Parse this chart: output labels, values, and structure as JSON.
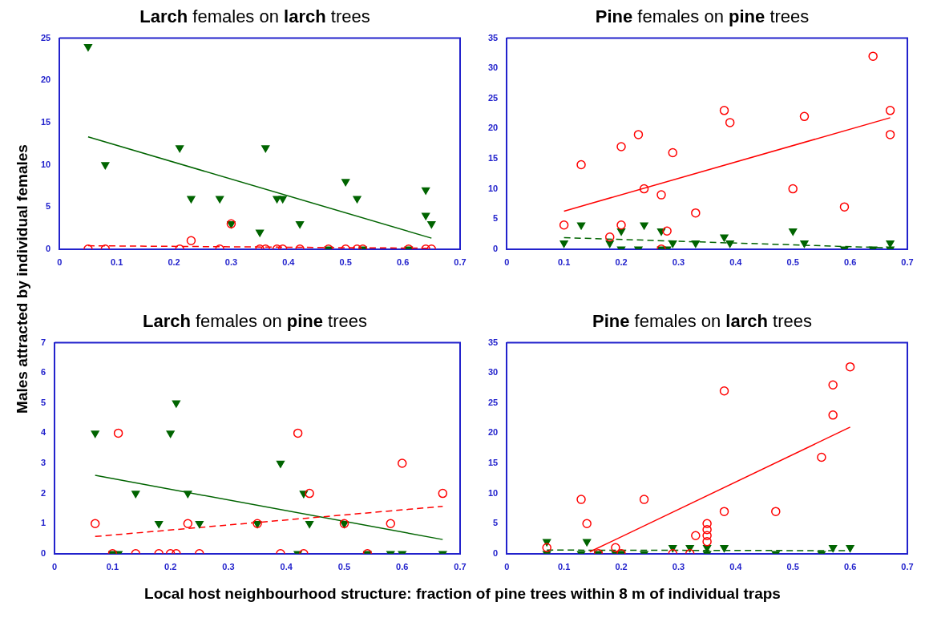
{
  "chart_data": [
    {
      "type": "scatter",
      "title": "Larch females on larch trees",
      "ylabel": "Males attracted by individual females",
      "xlim": [
        0,
        0.7
      ],
      "xticks": [
        0,
        0.1,
        0.2,
        0.3,
        0.4,
        0.5,
        0.6,
        0.7
      ],
      "ylim": [
        0,
        25
      ],
      "yticks": [
        0,
        5,
        10,
        15,
        20,
        25
      ],
      "grid": false,
      "legend": false,
      "series": [
        {
          "type": "scatter",
          "marker": "circle",
          "color": "#ff0000",
          "x": [
            0.05,
            0.08,
            0.21,
            0.23,
            0.28,
            0.3,
            0.35,
            0.36,
            0.38,
            0.39,
            0.42,
            0.47,
            0.5,
            0.52,
            0.53,
            0.61,
            0.64,
            0.65
          ],
          "values": [
            0,
            0,
            0,
            1,
            0,
            3,
            0,
            0,
            0,
            0,
            0,
            0,
            0,
            0,
            0,
            0,
            0,
            0
          ]
        },
        {
          "type": "scatter",
          "marker": "triangle",
          "color": "#006400",
          "x": [
            0.05,
            0.08,
            0.21,
            0.23,
            0.28,
            0.3,
            0.35,
            0.36,
            0.38,
            0.39,
            0.42,
            0.47,
            0.5,
            0.52,
            0.53,
            0.61,
            0.64,
            0.64,
            0.65
          ],
          "values": [
            24,
            10,
            12,
            6,
            6,
            3,
            2,
            12,
            6,
            6,
            3,
            0,
            8,
            6,
            0,
            0,
            7,
            4,
            3
          ]
        },
        {
          "type": "line",
          "line_style": "dashed",
          "color": "#ff0000",
          "x": [
            0.05,
            0.65
          ],
          "values": [
            0.4,
            0.1
          ]
        },
        {
          "type": "line",
          "line_style": "solid",
          "color": "#006400",
          "x": [
            0.05,
            0.65
          ],
          "values": [
            13.3,
            1.3
          ]
        }
      ]
    },
    {
      "type": "scatter",
      "title": "Pine females on pine trees",
      "xlim": [
        0,
        0.7
      ],
      "xticks": [
        0,
        0.1,
        0.2,
        0.3,
        0.4,
        0.5,
        0.6,
        0.7
      ],
      "ylim": [
        0,
        35
      ],
      "yticks": [
        0,
        5,
        10,
        15,
        20,
        25,
        30,
        35
      ],
      "grid": false,
      "legend": false,
      "series": [
        {
          "type": "scatter",
          "marker": "circle",
          "color": "#ff0000",
          "x": [
            0.1,
            0.13,
            0.18,
            0.2,
            0.2,
            0.23,
            0.24,
            0.27,
            0.27,
            0.28,
            0.29,
            0.33,
            0.38,
            0.39,
            0.5,
            0.52,
            0.59,
            0.64,
            0.67,
            0.67
          ],
          "values": [
            4,
            14,
            2,
            17,
            4,
            19,
            10,
            9,
            0,
            3,
            16,
            6,
            23,
            21,
            10,
            22,
            7,
            32,
            23,
            19
          ]
        },
        {
          "type": "scatter",
          "marker": "triangle",
          "color": "#006400",
          "x": [
            0.1,
            0.13,
            0.18,
            0.2,
            0.2,
            0.23,
            0.24,
            0.27,
            0.27,
            0.28,
            0.29,
            0.33,
            0.38,
            0.39,
            0.5,
            0.52,
            0.59,
            0.64,
            0.67,
            0.67
          ],
          "values": [
            1,
            4,
            1,
            3,
            0,
            0,
            4,
            3,
            0,
            0,
            1,
            1,
            2,
            1,
            3,
            1,
            0,
            0,
            1,
            0
          ]
        },
        {
          "type": "line",
          "line_style": "solid",
          "color": "#ff0000",
          "x": [
            0.1,
            0.67
          ],
          "values": [
            6.3,
            21.8
          ]
        },
        {
          "type": "line",
          "line_style": "dashed",
          "color": "#006400",
          "x": [
            0.1,
            0.67
          ],
          "values": [
            1.9,
            0.2
          ]
        }
      ]
    },
    {
      "type": "scatter",
      "title": "Larch females on pine trees",
      "xlabel": "Local host neighbourhood structure: fraction of pine trees within 8 m of individual traps",
      "xlim": [
        0,
        0.7
      ],
      "xticks": [
        0,
        0.1,
        0.2,
        0.3,
        0.4,
        0.5,
        0.6,
        0.7
      ],
      "ylim": [
        0,
        7
      ],
      "yticks": [
        0,
        1,
        2,
        3,
        4,
        5,
        6,
        7
      ],
      "grid": false,
      "legend": false,
      "series": [
        {
          "type": "scatter",
          "marker": "circle",
          "color": "#ff0000",
          "x": [
            0.07,
            0.1,
            0.11,
            0.14,
            0.18,
            0.2,
            0.21,
            0.23,
            0.25,
            0.35,
            0.39,
            0.42,
            0.43,
            0.44,
            0.5,
            0.54,
            0.58,
            0.6,
            0.67
          ],
          "values": [
            1,
            0,
            4,
            0,
            0,
            0,
            0,
            1,
            0,
            1,
            0,
            4,
            0,
            2,
            1,
            0,
            1,
            3,
            2
          ]
        },
        {
          "type": "scatter",
          "marker": "triangle",
          "color": "#006400",
          "x": [
            0.07,
            0.1,
            0.11,
            0.14,
            0.18,
            0.2,
            0.21,
            0.23,
            0.25,
            0.35,
            0.39,
            0.42,
            0.43,
            0.44,
            0.5,
            0.54,
            0.58,
            0.6,
            0.67
          ],
          "values": [
            4,
            0,
            0,
            2,
            1,
            4,
            5,
            2,
            1,
            1,
            3,
            0,
            2,
            1,
            1,
            0,
            0,
            0,
            0
          ]
        },
        {
          "type": "line",
          "line_style": "dashed",
          "color": "#ff0000",
          "x": [
            0.07,
            0.67
          ],
          "values": [
            0.57,
            1.57
          ]
        },
        {
          "type": "line",
          "line_style": "solid",
          "color": "#006400",
          "x": [
            0.07,
            0.67
          ],
          "values": [
            2.6,
            0.47
          ]
        }
      ]
    },
    {
      "type": "scatter",
      "title": "Pine females on larch trees",
      "xlim": [
        0,
        0.7
      ],
      "xticks": [
        0,
        0.1,
        0.2,
        0.3,
        0.4,
        0.5,
        0.6,
        0.7
      ],
      "ylim": [
        0,
        35
      ],
      "yticks": [
        0,
        5,
        10,
        15,
        20,
        25,
        30,
        35
      ],
      "grid": false,
      "legend": false,
      "series": [
        {
          "type": "scatter",
          "marker": "circle",
          "color": "#ff0000",
          "x": [
            0.07,
            0.13,
            0.14,
            0.16,
            0.19,
            0.2,
            0.24,
            0.29,
            0.32,
            0.33,
            0.35,
            0.35,
            0.35,
            0.35,
            0.38,
            0.38,
            0.47,
            0.55,
            0.57,
            0.57,
            0.6
          ],
          "values": [
            1,
            9,
            5,
            0,
            1,
            0,
            9,
            0,
            0,
            3,
            5,
            4,
            3,
            2,
            27,
            7,
            7,
            16,
            28,
            23,
            31
          ]
        },
        {
          "type": "scatter",
          "marker": "triangle",
          "color": "#006400",
          "x": [
            0.07,
            0.07,
            0.13,
            0.14,
            0.16,
            0.19,
            0.2,
            0.24,
            0.29,
            0.32,
            0.35,
            0.35,
            0.38,
            0.47,
            0.55,
            0.57,
            0.6
          ],
          "values": [
            2,
            0,
            0,
            2,
            0,
            0,
            0,
            0,
            1,
            1,
            1,
            0,
            1,
            0,
            0,
            1,
            1
          ]
        },
        {
          "type": "line",
          "line_style": "solid",
          "color": "#ff0000",
          "x": [
            0.145,
            0.6
          ],
          "values": [
            0.3,
            21
          ]
        },
        {
          "type": "line",
          "line_style": "dashed",
          "color": "#006400",
          "x": [
            0.07,
            0.6
          ],
          "values": [
            0.6,
            0.5
          ]
        }
      ]
    }
  ]
}
